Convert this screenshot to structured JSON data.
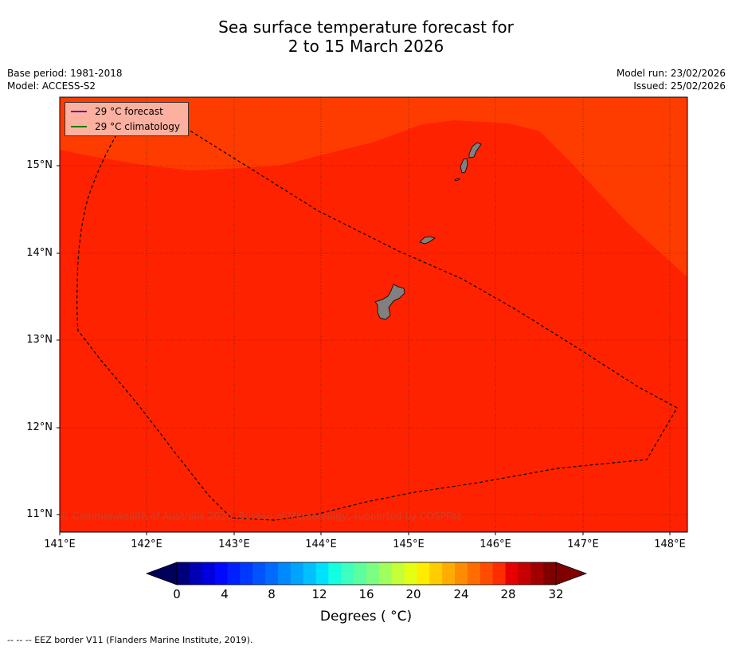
{
  "title_line1": "Sea surface temperature forecast for",
  "title_line2": "2 to 15 March 2026",
  "base_period": "Base period: 1981-2018",
  "model": "Model: ACCESS-S2",
  "model_run": "Model run: 23/02/2026",
  "issued": "Issued: 25/02/2026",
  "legend": {
    "forecast_label": "29 °C  forecast",
    "forecast_color": "#6a0dad",
    "climatology_label": "29 °C  climatology",
    "climatology_color": "#1a7a00"
  },
  "copyright": "© Commonwealth of Australia 2026, Bureau of Meteorology, supported by COSPPac",
  "y_ticks": [
    "15°N",
    "14°N",
    "13°N",
    "12°N",
    "11°N"
  ],
  "x_ticks": [
    "141°E",
    "142°E",
    "143°E",
    "144°E",
    "145°E",
    "146°E",
    "147°E",
    "148°E"
  ],
  "colorbar": {
    "ticks": [
      "0",
      "4",
      "8",
      "12",
      "16",
      "20",
      "24",
      "28",
      "32"
    ],
    "label": "Degrees (°C)",
    "colors": [
      "#00007a",
      "#0000b4",
      "#0000dc",
      "#0008ff",
      "#0020ff",
      "#0038ff",
      "#0054ff",
      "#006cff",
      "#0088ff",
      "#00a4ff",
      "#00c0ff",
      "#00e0ff",
      "#14ffe0",
      "#3cffc0",
      "#5cffa0",
      "#7cff80",
      "#a0ff5c",
      "#c4ff38",
      "#e4ff14",
      "#ffec00",
      "#ffcc00",
      "#ffac00",
      "#ff8c00",
      "#ff6c00",
      "#ff4c00",
      "#ff2c00",
      "#e80000",
      "#c40000",
      "#a00000",
      "#800000"
    ],
    "under_color": "#00005a",
    "over_color": "#800000"
  },
  "colorbar_label": "Degrees ( °C)",
  "footnote": "--  --  -- EEZ border V11 (Flanders Marine Institute, 2019)."
}
